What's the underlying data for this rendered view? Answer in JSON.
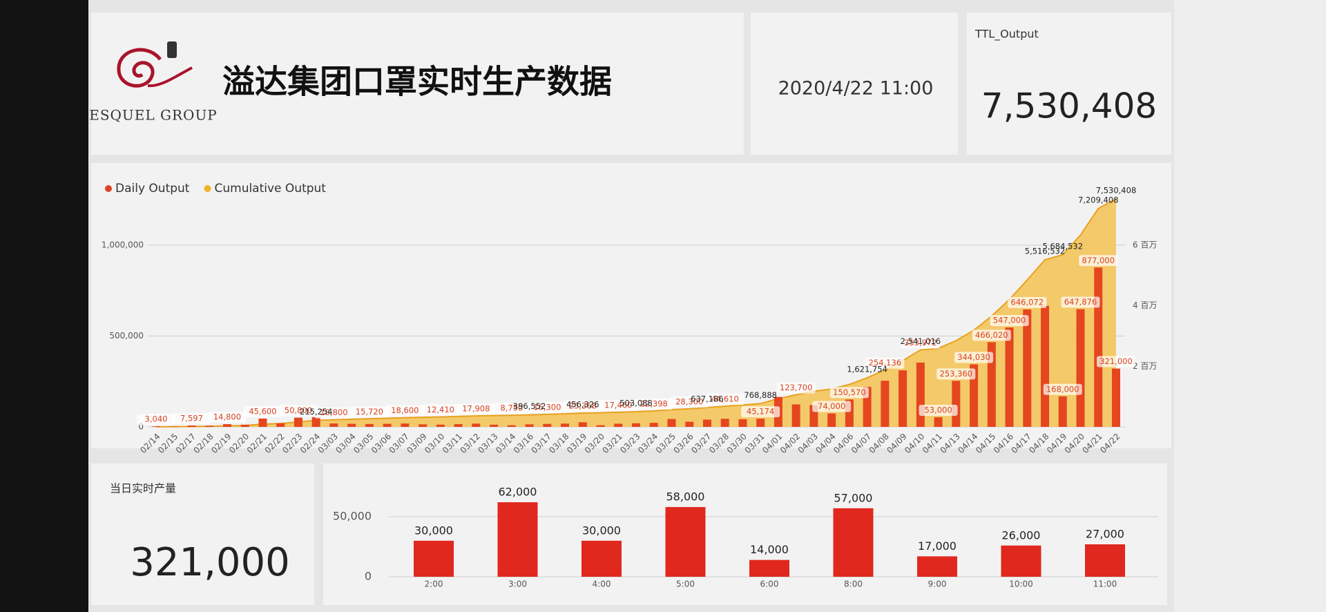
{
  "header": {
    "logo": "ESQUEL GROUP",
    "title": "溢达集团口罩实时生产数据",
    "datetime": "2020/4/22 11:00"
  },
  "total": {
    "label": "TTL_Output",
    "value": "7,530,408"
  },
  "today": {
    "label": "当日实时产量",
    "value": "321,000"
  },
  "chart_data": [
    {
      "type": "combo",
      "categories": [
        "02/14",
        "02/15",
        "02/17",
        "02/18",
        "02/19",
        "02/20",
        "02/21",
        "02/22",
        "02/23",
        "02/24",
        "03/03",
        "03/04",
        "03/05",
        "03/06",
        "03/07",
        "03/09",
        "03/10",
        "03/11",
        "03/12",
        "03/13",
        "03/14",
        "03/16",
        "03/17",
        "03/18",
        "03/19",
        "03/20",
        "03/21",
        "03/23",
        "03/24",
        "03/25",
        "03/26",
        "03/27",
        "03/28",
        "03/30",
        "03/31",
        "04/01",
        "04/02",
        "04/03",
        "04/04",
        "04/06",
        "04/07",
        "04/08",
        "04/09",
        "04/10",
        "04/11",
        "04/13",
        "04/14",
        "04/15",
        "04/16",
        "04/17",
        "04/18",
        "04/19",
        "04/20",
        "04/21",
        "04/22"
      ],
      "series": [
        {
          "name": "Daily Output",
          "type": "bar",
          "color": "#e4461f",
          "values": [
            3040,
            2000,
            7597,
            6000,
            14800,
            12000,
            45600,
            20000,
            50800,
            53417,
            18800,
            17110,
            15720,
            17000,
            18600,
            14000,
            12410,
            15000,
            17908,
            12000,
            8750,
            14000,
            16300,
            18106,
            25368,
            9302,
            17460,
            20000,
            22398,
            43400,
            28300,
            40000,
            44610,
            41918,
            45174,
            164596,
            123700,
            120000,
            74000,
            150570,
            220000,
            254136,
            311154,
            353972,
            53000,
            253360,
            344030,
            466020,
            547000,
            646072,
            666034,
            168000,
            647876,
            877000,
            321000
          ],
          "value_labels": [
            "3,040",
            null,
            "7,597",
            null,
            "14,800",
            null,
            "45,600",
            null,
            "50,800",
            null,
            "18,800",
            null,
            "15,720",
            null,
            "18,600",
            null,
            "12,410",
            null,
            "17,908",
            null,
            "8,750",
            null,
            "16,300",
            null,
            "25,368",
            null,
            "17,460",
            null,
            "22,398",
            null,
            "28,300",
            null,
            "44,610",
            null,
            "45,174",
            null,
            "123,700",
            null,
            "74,000",
            "150,570",
            null,
            "254,136",
            null,
            "353,972",
            "53,000",
            "253,360",
            "344,030",
            "466,020",
            "547,000",
            "646,072",
            null,
            "168,000",
            "647,876",
            "877,000",
            "321,000"
          ]
        },
        {
          "name": "Cumulative Output",
          "type": "area",
          "axis": "y2",
          "color": "#f3c252",
          "values": [
            3040,
            5040,
            12637,
            18637,
            33437,
            45437,
            91037,
            111037,
            161837,
            215254,
            234054,
            251164,
            266884,
            283884,
            302484,
            316484,
            328894,
            343894,
            361802,
            373802,
            382552,
            396552,
            412852,
            430958,
            456326,
            465628,
            483088,
            503088,
            525486,
            568886,
            597186,
            637186,
            681796,
            723714,
            768888,
            933484,
            1057184,
            1177184,
            1251184,
            1401754,
            1621754,
            1875890,
            2187044,
            2541016,
            2594016,
            2847376,
            3191406,
            3657426,
            4204426,
            4850498,
            5516532,
            5684532,
            6332408,
            7209408,
            7530408
          ],
          "value_labels": [
            null,
            null,
            null,
            null,
            null,
            null,
            null,
            null,
            null,
            "215,254",
            null,
            null,
            null,
            null,
            null,
            null,
            null,
            null,
            null,
            null,
            null,
            "396,552",
            null,
            null,
            "456,326",
            null,
            null,
            "503,088",
            null,
            null,
            null,
            "637,186",
            null,
            null,
            "768,888",
            null,
            null,
            null,
            null,
            null,
            "1,621,754",
            null,
            null,
            "2,541,016",
            null,
            null,
            null,
            null,
            null,
            null,
            "5,516,532",
            "5,684,532",
            null,
            "7,209,408",
            "7,530,408"
          ]
        }
      ],
      "ylim": [
        0,
        1300000
      ],
      "yticks": [
        0,
        {
          "value": 500000,
          "label": "500,000"
        },
        {
          "value": 1000000,
          "label": "1,000,000"
        }
      ],
      "y2lim": [
        0,
        7800000
      ],
      "y2ticks": [
        {
          "value": 2000000,
          "label": "2 百万"
        },
        {
          "value": 4000000,
          "label": "4 百万"
        },
        {
          "value": 6000000,
          "label": "6 百万"
        }
      ],
      "grid": true,
      "legend": "top-left"
    },
    {
      "type": "bar",
      "categories": [
        "2:00",
        "3:00",
        "4:00",
        "5:00",
        "6:00",
        "8:00",
        "9:00",
        "10:00",
        "11:00"
      ],
      "values": [
        30000,
        62000,
        30000,
        58000,
        14000,
        57000,
        17000,
        26000,
        27000
      ],
      "value_labels": [
        "30,000",
        "62,000",
        "30,000",
        "58,000",
        "14,000",
        "57,000",
        "17,000",
        "26,000",
        "27,000"
      ],
      "color": "#e0281e",
      "ylim": [
        0,
        80000
      ],
      "yticks": [
        0,
        {
          "value": 50000,
          "label": "50,000"
        }
      ],
      "grid": true
    }
  ]
}
